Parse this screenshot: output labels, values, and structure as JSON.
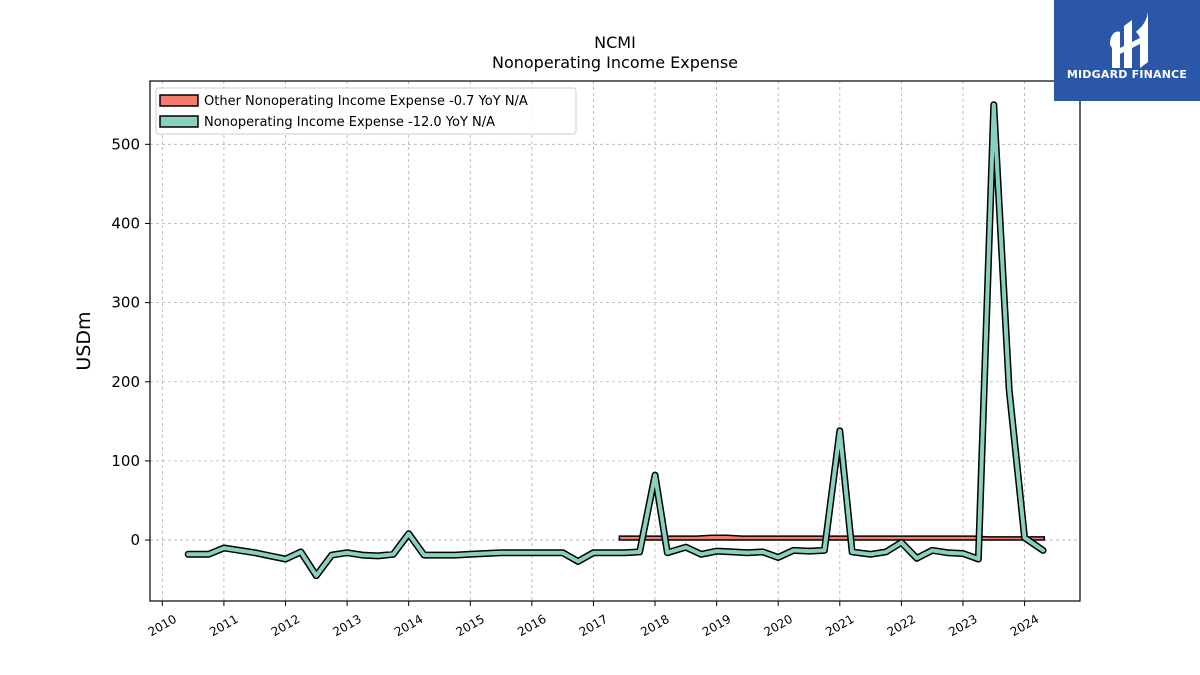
{
  "chart_data": {
    "type": "line",
    "title": "NCMI",
    "subtitle": "Nonoperating Income Expense",
    "ylabel": "USDm",
    "xlabel": "",
    "ylim": [
      -77,
      580
    ],
    "xlim": [
      2009.8,
      2024.9
    ],
    "yticks": [
      0,
      100,
      200,
      300,
      400,
      500
    ],
    "xticks": [
      "2010",
      "2011",
      "2012",
      "2013",
      "2014",
      "2015",
      "2016",
      "2017",
      "2018",
      "2019",
      "2020",
      "2021",
      "2022",
      "2023",
      "2024"
    ],
    "grid": true,
    "legend_position": "top-left",
    "series": [
      {
        "name": "Other Nonoperating Income Expense  -0.7 YoY N/A",
        "type": "area",
        "color": "#f47c6f",
        "x": [
          2017.42,
          2017.67,
          2017.92,
          2018.17,
          2018.42,
          2018.67,
          2018.92,
          2019.17,
          2019.42,
          2019.67,
          2019.92,
          2020.17,
          2020.42,
          2020.67,
          2020.92,
          2021.17,
          2021.42,
          2021.67,
          2021.92,
          2022.17,
          2022.42,
          2022.67,
          2022.92,
          2023.17,
          2023.42,
          2023.67,
          2023.92,
          2024.17,
          2024.32
        ],
        "values": [
          5,
          5,
          5,
          5,
          5,
          5,
          6,
          6,
          5,
          5,
          5,
          5,
          5,
          5,
          5,
          5,
          5,
          5,
          5,
          5,
          5,
          5,
          5,
          5,
          4,
          4,
          4,
          4,
          4
        ]
      },
      {
        "name": "Nonoperating Income Expense  -12.0 YoY N/A",
        "type": "line",
        "color": "#88d1c1",
        "x": [
          2010.42,
          2010.75,
          2011.0,
          2011.25,
          2011.5,
          2011.75,
          2012.0,
          2012.25,
          2012.5,
          2012.75,
          2013.0,
          2013.25,
          2013.5,
          2013.75,
          2014.0,
          2014.25,
          2014.5,
          2014.75,
          2015.0,
          2015.25,
          2015.5,
          2015.75,
          2016.0,
          2016.25,
          2016.5,
          2016.75,
          2017.0,
          2017.25,
          2017.5,
          2017.75,
          2018.0,
          2018.2,
          2018.5,
          2018.75,
          2019.0,
          2019.25,
          2019.5,
          2019.75,
          2020.0,
          2020.25,
          2020.5,
          2020.75,
          2021.0,
          2021.2,
          2021.5,
          2021.75,
          2022.0,
          2022.25,
          2022.5,
          2022.75,
          2023.0,
          2023.25,
          2023.5,
          2023.75,
          2024.0,
          2024.3
        ],
        "values": [
          -18,
          -18,
          -10,
          -13,
          -16,
          -20,
          -24,
          -15,
          -45,
          -19,
          -16,
          -19,
          -20,
          -18,
          8,
          -19,
          -19,
          -19,
          -18,
          -17,
          -16,
          -16,
          -16,
          -16,
          -16,
          -27,
          -16,
          -16,
          -16,
          -15,
          82,
          -16,
          -9,
          -18,
          -14,
          -15,
          -16,
          -15,
          -22,
          -13,
          -14,
          -13,
          138,
          -15,
          -18,
          -15,
          -3,
          -23,
          -13,
          -16,
          -17,
          -24,
          550,
          190,
          3,
          -13
        ]
      }
    ]
  },
  "logo": {
    "text": "MIDGARD FINANCE",
    "background": "#2a57a8"
  }
}
